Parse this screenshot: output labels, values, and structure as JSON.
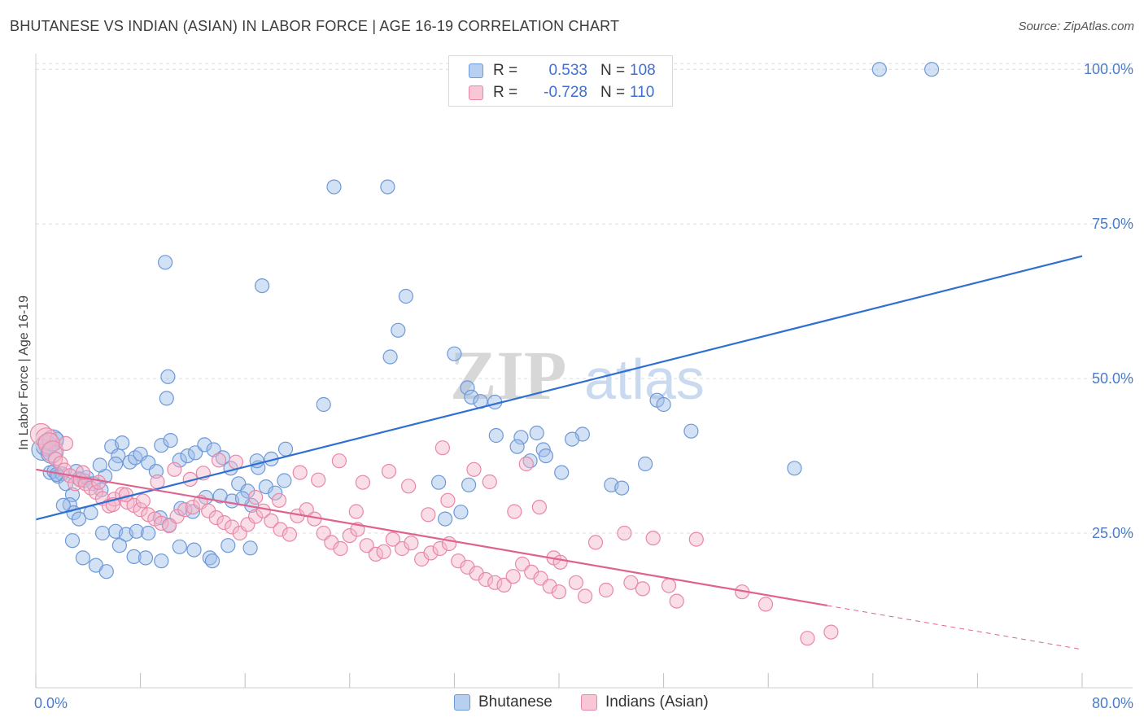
{
  "title": "BHUTANESE VS INDIAN (ASIAN) IN LABOR FORCE | AGE 16-19 CORRELATION CHART",
  "source": "Source: ZipAtlas.com",
  "watermark": "ZIPatlas",
  "legend": {
    "rows": [
      {
        "r_label": "R =",
        "r_value": "0.533",
        "n_label": "N =",
        "n_value": "108",
        "color": "#9dbde9",
        "border": "#6d99d8"
      },
      {
        "r_label": "R =",
        "r_value": "-0.728",
        "n_label": "N =",
        "n_value": "110",
        "color": "#f5b5c9",
        "border": "#e887a7"
      }
    ]
  },
  "bottom_legend": [
    {
      "label": "Bhutanese",
      "color": "#b7cff1",
      "border": "#6d99d8"
    },
    {
      "label": "Indians (Asian)",
      "color": "#f8c6d5",
      "border": "#e887a7"
    }
  ],
  "chart_data": {
    "type": "scatter",
    "title": "BHUTANESE VS INDIAN (ASIAN) IN LABOR FORCE | AGE 16-19 CORRELATION CHART",
    "ylabel": "In Labor Force | Age 16-19",
    "xlabel": "",
    "xlim": [
      0,
      80
    ],
    "ylim": [
      0,
      102
    ],
    "x_tick_labels": [
      "0.0%",
      "80.0%"
    ],
    "y_tick_labels": [
      {
        "value": 25,
        "label": "25.0%"
      },
      {
        "value": 50,
        "label": "50.0%"
      },
      {
        "value": 75,
        "label": "75.0%"
      },
      {
        "value": 100,
        "label": "100.0%"
      }
    ],
    "grid": true,
    "series": [
      {
        "name": "Bhutanese",
        "color": "#6d99d8",
        "fill": "rgba(157,189,233,0.45)",
        "trend": {
          "x0": 0,
          "y0": 27.2,
          "x1": 80,
          "y1": 69.8,
          "color": "#2f6fd1"
        },
        "points": [
          [
            0.5,
            38.5
          ],
          [
            0.8,
            39.2
          ],
          [
            1.1,
            34.8
          ],
          [
            1.4,
            35.0
          ],
          [
            1.7,
            34.2
          ],
          [
            2.0,
            34.6
          ],
          [
            1.6,
            34.5
          ],
          [
            2.3,
            33.0
          ],
          [
            2.8,
            31.2
          ],
          [
            3.1,
            35.0
          ],
          [
            3.3,
            33.8
          ],
          [
            2.6,
            29.6
          ],
          [
            3.7,
            33.5
          ],
          [
            3.9,
            34.0
          ],
          [
            4.4,
            33.0
          ],
          [
            5.0,
            32.0
          ],
          [
            5.3,
            34.2
          ],
          [
            4.9,
            36.0
          ],
          [
            5.8,
            39.0
          ],
          [
            6.3,
            37.5
          ],
          [
            6.6,
            39.6
          ],
          [
            6.1,
            36.2
          ],
          [
            7.2,
            36.5
          ],
          [
            7.6,
            37.2
          ],
          [
            8.0,
            37.8
          ],
          [
            8.6,
            36.4
          ],
          [
            9.2,
            35.0
          ],
          [
            9.6,
            39.2
          ],
          [
            10.3,
            40.0
          ],
          [
            11.0,
            36.8
          ],
          [
            11.6,
            37.5
          ],
          [
            12.2,
            38.0
          ],
          [
            12.9,
            39.3
          ],
          [
            13.6,
            38.5
          ],
          [
            14.3,
            37.2
          ],
          [
            14.9,
            35.5
          ],
          [
            15.5,
            33.0
          ],
          [
            16.2,
            31.8
          ],
          [
            17.0,
            35.6
          ],
          [
            16.5,
            29.5
          ],
          [
            17.6,
            32.5
          ],
          [
            18.3,
            31.5
          ],
          [
            19.0,
            33.5
          ],
          [
            2.9,
            28.3
          ],
          [
            3.3,
            27.3
          ],
          [
            4.2,
            28.3
          ],
          [
            5.1,
            25.0
          ],
          [
            6.1,
            25.3
          ],
          [
            6.9,
            24.8
          ],
          [
            7.7,
            25.3
          ],
          [
            8.6,
            25.0
          ],
          [
            9.5,
            27.5
          ],
          [
            10.2,
            26.3
          ],
          [
            11.1,
            29.0
          ],
          [
            12.0,
            28.5
          ],
          [
            13.0,
            30.8
          ],
          [
            14.1,
            31.0
          ],
          [
            15.0,
            30.2
          ],
          [
            15.8,
            30.6
          ],
          [
            16.9,
            36.7
          ],
          [
            18.0,
            37.0
          ],
          [
            19.1,
            38.6
          ],
          [
            2.1,
            29.5
          ],
          [
            2.8,
            23.8
          ],
          [
            3.6,
            21.0
          ],
          [
            4.6,
            19.8
          ],
          [
            5.4,
            18.8
          ],
          [
            6.4,
            23.0
          ],
          [
            7.5,
            21.2
          ],
          [
            8.4,
            21.0
          ],
          [
            9.6,
            20.5
          ],
          [
            11.0,
            22.8
          ],
          [
            12.1,
            22.3
          ],
          [
            13.3,
            21.0
          ],
          [
            14.7,
            23.0
          ],
          [
            16.4,
            22.6
          ],
          [
            13.5,
            20.5
          ],
          [
            1.2,
            38.0
          ],
          [
            1.6,
            40.2
          ],
          [
            1.3,
            40.0
          ],
          [
            9.9,
            68.8
          ],
          [
            10.1,
            50.3
          ],
          [
            10.0,
            46.8
          ],
          [
            17.3,
            65.0
          ],
          [
            22.0,
            45.8
          ],
          [
            22.8,
            81.0
          ],
          [
            26.9,
            81.0
          ],
          [
            28.3,
            63.3
          ],
          [
            27.7,
            57.8
          ],
          [
            27.1,
            53.5
          ],
          [
            32.0,
            54.0
          ],
          [
            33.0,
            48.5
          ],
          [
            33.3,
            47.0
          ],
          [
            34.0,
            46.3
          ],
          [
            35.1,
            46.2
          ],
          [
            38.3,
            41.2
          ],
          [
            38.8,
            38.5
          ],
          [
            35.2,
            40.8
          ],
          [
            37.1,
            40.5
          ],
          [
            39.0,
            37.5
          ],
          [
            41.8,
            41.0
          ],
          [
            40.2,
            34.8
          ],
          [
            41.0,
            40.2
          ],
          [
            36.8,
            39.0
          ],
          [
            37.8,
            36.7
          ],
          [
            33.1,
            32.8
          ],
          [
            32.5,
            28.4
          ],
          [
            30.8,
            33.2
          ],
          [
            31.3,
            27.3
          ],
          [
            64.5,
            100.0
          ],
          [
            68.5,
            100.0
          ],
          [
            58.0,
            35.5
          ],
          [
            47.5,
            46.5
          ],
          [
            48.0,
            45.8
          ],
          [
            50.1,
            41.5
          ],
          [
            44.0,
            32.8
          ],
          [
            46.6,
            36.2
          ],
          [
            44.8,
            32.3
          ]
        ]
      },
      {
        "name": "Indians (Asian)",
        "color": "#e887a7",
        "fill": "rgba(245,181,201,0.45)",
        "trend": {
          "x0": 0,
          "y0": 35.3,
          "x1": 60.5,
          "y1": 13.3,
          "color": "#e0628d",
          "dash_to_x": 80,
          "dash_to_y": 6.2
        },
        "points": [
          [
            0.4,
            41.0
          ],
          [
            0.8,
            40.3
          ],
          [
            1.0,
            39.5
          ],
          [
            1.3,
            38.2
          ],
          [
            1.5,
            37.0
          ],
          [
            1.9,
            36.3
          ],
          [
            2.2,
            35.2
          ],
          [
            2.6,
            34.3
          ],
          [
            3.0,
            33.0
          ],
          [
            3.4,
            33.6
          ],
          [
            3.8,
            33.0
          ],
          [
            4.2,
            32.3
          ],
          [
            4.6,
            31.6
          ],
          [
            5.1,
            30.6
          ],
          [
            5.6,
            29.4
          ],
          [
            6.0,
            30.5
          ],
          [
            6.6,
            31.3
          ],
          [
            7.0,
            30.0
          ],
          [
            7.5,
            29.5
          ],
          [
            8.0,
            28.8
          ],
          [
            8.6,
            28.0
          ],
          [
            9.1,
            27.3
          ],
          [
            9.6,
            26.6
          ],
          [
            10.2,
            26.2
          ],
          [
            10.8,
            27.7
          ],
          [
            11.4,
            28.8
          ],
          [
            12.0,
            29.2
          ],
          [
            12.6,
            30.0
          ],
          [
            13.2,
            28.6
          ],
          [
            13.8,
            27.5
          ],
          [
            14.4,
            26.7
          ],
          [
            15.0,
            26.0
          ],
          [
            15.6,
            25.0
          ],
          [
            16.2,
            26.4
          ],
          [
            16.8,
            27.7
          ],
          [
            17.4,
            28.6
          ],
          [
            18.0,
            27.0
          ],
          [
            18.7,
            25.6
          ],
          [
            19.4,
            24.8
          ],
          [
            20.0,
            27.8
          ],
          [
            20.7,
            28.8
          ],
          [
            21.3,
            27.3
          ],
          [
            22.0,
            25.0
          ],
          [
            22.6,
            23.5
          ],
          [
            23.3,
            22.5
          ],
          [
            24.0,
            24.6
          ],
          [
            24.6,
            25.6
          ],
          [
            25.3,
            23.0
          ],
          [
            26.0,
            21.6
          ],
          [
            26.6,
            22.0
          ],
          [
            27.3,
            24.0
          ],
          [
            28.0,
            22.5
          ],
          [
            28.7,
            23.4
          ],
          [
            29.5,
            20.8
          ],
          [
            30.2,
            21.8
          ],
          [
            30.9,
            22.5
          ],
          [
            31.6,
            23.3
          ],
          [
            32.3,
            20.5
          ],
          [
            33.0,
            19.5
          ],
          [
            33.7,
            18.5
          ],
          [
            34.4,
            17.5
          ],
          [
            35.1,
            17.0
          ],
          [
            35.8,
            16.6
          ],
          [
            36.5,
            18.0
          ],
          [
            37.2,
            20.0
          ],
          [
            37.9,
            18.7
          ],
          [
            38.6,
            17.7
          ],
          [
            39.3,
            16.4
          ],
          [
            40.0,
            15.5
          ],
          [
            2.3,
            39.5
          ],
          [
            3.6,
            34.8
          ],
          [
            4.8,
            33.2
          ],
          [
            5.9,
            29.6
          ],
          [
            6.9,
            31.2
          ],
          [
            8.2,
            30.2
          ],
          [
            9.3,
            33.3
          ],
          [
            10.6,
            35.3
          ],
          [
            11.8,
            33.7
          ],
          [
            12.8,
            34.7
          ],
          [
            14.0,
            36.8
          ],
          [
            15.3,
            36.5
          ],
          [
            16.8,
            30.8
          ],
          [
            18.6,
            30.3
          ],
          [
            20.2,
            34.8
          ],
          [
            21.6,
            33.6
          ],
          [
            23.2,
            36.7
          ],
          [
            25.0,
            33.2
          ],
          [
            27.0,
            35.0
          ],
          [
            28.5,
            32.6
          ],
          [
            30.0,
            28.0
          ],
          [
            31.5,
            30.3
          ],
          [
            33.5,
            35.3
          ],
          [
            34.7,
            33.3
          ],
          [
            31.1,
            38.8
          ],
          [
            36.6,
            28.5
          ],
          [
            38.5,
            29.2
          ],
          [
            39.6,
            21.0
          ],
          [
            41.3,
            17.0
          ],
          [
            42.0,
            14.8
          ],
          [
            43.6,
            15.8
          ],
          [
            45.5,
            17.0
          ],
          [
            46.4,
            16.0
          ],
          [
            48.4,
            16.5
          ],
          [
            49.0,
            14.0
          ],
          [
            50.5,
            24.0
          ],
          [
            54.0,
            15.5
          ],
          [
            55.8,
            13.5
          ],
          [
            59.0,
            8.0
          ],
          [
            60.8,
            9.0
          ],
          [
            37.5,
            36.2
          ],
          [
            40.1,
            20.3
          ],
          [
            42.8,
            23.5
          ],
          [
            45.0,
            25.0
          ],
          [
            47.2,
            24.2
          ],
          [
            24.5,
            28.5
          ]
        ]
      }
    ]
  }
}
